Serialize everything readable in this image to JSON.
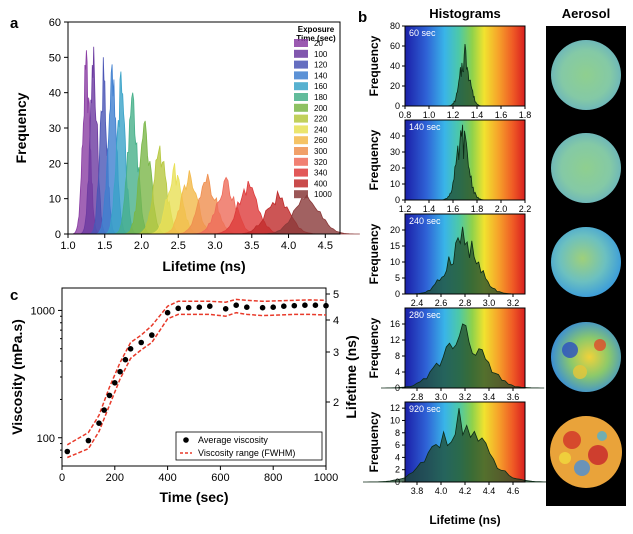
{
  "panels": {
    "a": "a",
    "b": "b",
    "c": "c"
  },
  "headers": {
    "histograms": "Histograms",
    "aerosol": "Aerosol"
  },
  "chart_data": [
    {
      "id": "a",
      "type": "area",
      "xlabel": "Lifetime (ns)",
      "ylabel": "Frequency",
      "xlim": [
        1.0,
        4.7
      ],
      "ylim": [
        0,
        60
      ],
      "xticks": [
        "1.0",
        "1.5",
        "2.0",
        "2.5",
        "3.0",
        "3.5",
        "4.0",
        "4.5"
      ],
      "yticks": [
        "0",
        "10",
        "20",
        "30",
        "40",
        "50",
        "60"
      ],
      "legend_title": "Exposure\nTime (sec)",
      "legend_position": "top-right",
      "series": [
        {
          "name": "20",
          "center": 1.25,
          "peak": 52,
          "width": 0.05,
          "color": "#8a3da3"
        },
        {
          "name": "100",
          "center": 1.35,
          "peak": 53,
          "width": 0.05,
          "color": "#6b3aa0"
        },
        {
          "name": "120",
          "center": 1.48,
          "peak": 50,
          "width": 0.05,
          "color": "#4a55b5"
        },
        {
          "name": "140",
          "center": 1.6,
          "peak": 48,
          "width": 0.06,
          "color": "#3f7fcf"
        },
        {
          "name": "160",
          "center": 1.72,
          "peak": 46,
          "width": 0.06,
          "color": "#3aa3c8"
        },
        {
          "name": "180",
          "center": 1.88,
          "peak": 40,
          "width": 0.07,
          "color": "#47b08a"
        },
        {
          "name": "200",
          "center": 2.05,
          "peak": 32,
          "width": 0.08,
          "color": "#7ab648"
        },
        {
          "name": "220",
          "center": 2.25,
          "peak": 25,
          "width": 0.09,
          "color": "#b6c840"
        },
        {
          "name": "240",
          "center": 2.45,
          "peak": 20,
          "width": 0.1,
          "color": "#e8e055"
        },
        {
          "name": "260",
          "center": 2.65,
          "peak": 18,
          "width": 0.11,
          "color": "#f3b94a"
        },
        {
          "name": "300",
          "center": 2.9,
          "peak": 17,
          "width": 0.12,
          "color": "#ef8f4f"
        },
        {
          "name": "320",
          "center": 3.15,
          "peak": 16,
          "width": 0.13,
          "color": "#ee6b5a"
        },
        {
          "name": "340",
          "center": 3.45,
          "peak": 15,
          "width": 0.14,
          "color": "#dd3b3b"
        },
        {
          "name": "400",
          "center": 3.85,
          "peak": 12,
          "width": 0.16,
          "color": "#bf2b2b"
        },
        {
          "name": "1000",
          "center": 4.25,
          "peak": 11,
          "width": 0.18,
          "color": "#8a3a3a"
        }
      ]
    },
    {
      "id": "b",
      "type": "area",
      "ylabel": "Frequency",
      "xlabel": "Lifetime (ns)",
      "panels": [
        {
          "label": "60 sec",
          "xlim": [
            0.8,
            1.8
          ],
          "ylim": [
            0,
            80
          ],
          "xticks": [
            "0.8",
            "1.0",
            "1.2",
            "1.4",
            "1.6",
            "1.8"
          ],
          "yticks": [
            "0",
            "20",
            "40",
            "60",
            "80"
          ],
          "center": 1.3,
          "peak": 62,
          "width": 0.04
        },
        {
          "label": "140 sec",
          "xlim": [
            1.2,
            2.2
          ],
          "ylim": [
            0,
            50
          ],
          "xticks": [
            "1.2",
            "1.4",
            "1.6",
            "1.8",
            "2.0",
            "2.2"
          ],
          "yticks": [
            "0",
            "10",
            "20",
            "30",
            "40"
          ],
          "center": 1.68,
          "peak": 47,
          "width": 0.05
        },
        {
          "label": "240 sec",
          "xlim": [
            2.3,
            3.3
          ],
          "ylim": [
            0,
            25
          ],
          "xticks": [
            "2.4",
            "2.6",
            "2.8",
            "3.0",
            "3.2"
          ],
          "yticks": [
            "0",
            "5",
            "10",
            "15",
            "20"
          ],
          "center": 2.78,
          "peak": 21,
          "width": 0.12
        },
        {
          "label": "280 sec",
          "xlim": [
            2.7,
            3.7
          ],
          "ylim": [
            0,
            20
          ],
          "xticks": [
            "2.8",
            "3.0",
            "3.2",
            "3.4",
            "3.6"
          ],
          "yticks": [
            "0",
            "4",
            "8",
            "12",
            "16"
          ],
          "center": 3.18,
          "peak": 16,
          "width": 0.17
        },
        {
          "label": "920 sec",
          "xlim": [
            3.7,
            4.7
          ],
          "ylim": [
            0,
            13
          ],
          "xticks": [
            "3.8",
            "4.0",
            "4.2",
            "4.4",
            "4.6"
          ],
          "yticks": [
            "0",
            "2",
            "4",
            "6",
            "8",
            "10",
            "12"
          ],
          "center": 4.15,
          "peak": 12,
          "width": 0.2
        }
      ]
    },
    {
      "id": "c",
      "type": "scatter",
      "xlabel": "Time (sec)",
      "ylabel": "Viscosity (mPa.s)",
      "y2label": "Lifetime (ns)",
      "xlim": [
        0,
        1000
      ],
      "ylim": [
        60,
        1500
      ],
      "yscale": "log",
      "xticks": [
        "0",
        "200",
        "400",
        "600",
        "800",
        "1000"
      ],
      "yticks": [
        "100",
        "1000"
      ],
      "y2ticks": [
        "2",
        "3",
        "4",
        "5"
      ],
      "legend_position": "bottom-right",
      "series": [
        {
          "name": "Average viscosity",
          "x": [
            20,
            100,
            140,
            160,
            180,
            200,
            220,
            240,
            260,
            300,
            340,
            400,
            440,
            480,
            520,
            560,
            620,
            660,
            700,
            760,
            800,
            840,
            880,
            920,
            960,
            1000
          ],
          "y": [
            78,
            95,
            130,
            165,
            215,
            270,
            330,
            410,
            500,
            560,
            640,
            960,
            1040,
            1050,
            1060,
            1080,
            1030,
            1100,
            1060,
            1050,
            1060,
            1080,
            1090,
            1100,
            1100,
            1090
          ]
        },
        {
          "name": "Viscosity range (FWHM)",
          "x": [
            20,
            100,
            140,
            180,
            220,
            260,
            300,
            340,
            400,
            440,
            500,
            560,
            620,
            660,
            700,
            760,
            820,
            880,
            940,
            1000
          ],
          "upper": [
            88,
            110,
            150,
            250,
            390,
            560,
            640,
            760,
            1080,
            1180,
            1180,
            1180,
            1160,
            1220,
            1200,
            1180,
            1190,
            1200,
            1210,
            1200
          ],
          "lower": [
            70,
            82,
            112,
            180,
            290,
            420,
            490,
            560,
            860,
            930,
            930,
            930,
            900,
            960,
            930,
            910,
            920,
            930,
            930,
            920
          ]
        }
      ]
    }
  ]
}
